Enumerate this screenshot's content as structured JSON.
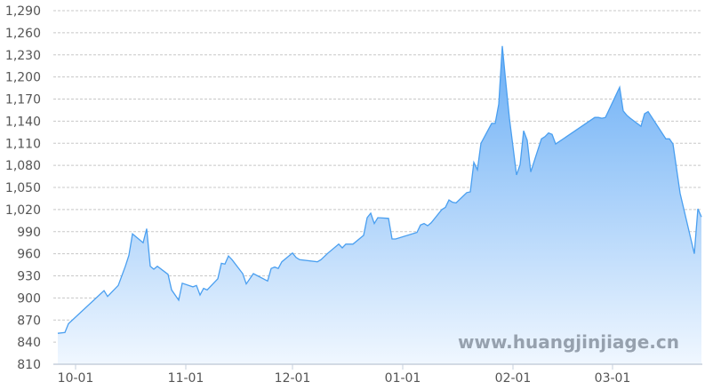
{
  "chart_data": {
    "type": "area",
    "title": "",
    "xlabel": "",
    "ylabel": "",
    "ylim": [
      810,
      1290
    ],
    "yticks": [
      "810",
      "840",
      "870",
      "900",
      "930",
      "960",
      "990",
      "1,020",
      "1,050",
      "1,080",
      "1,110",
      "1,140",
      "1,170",
      "1,200",
      "1,230",
      "1,260",
      "1,290"
    ],
    "xticks": [
      "10-01",
      "11-01",
      "12-01",
      "01-01",
      "02-01",
      "03-01"
    ],
    "grid": true,
    "legend": "none",
    "colors": {
      "line": "#4a9ff0",
      "fill_top": "#6aaef5",
      "fill_bottom": "#f0f7ff",
      "grid": "#c8c8c8",
      "axis": "#c5cfdc"
    },
    "watermark": "www.huangjinjiage.cn",
    "points": [
      [
        "09-26",
        852
      ],
      [
        "09-28",
        853
      ],
      [
        "09-29",
        865
      ],
      [
        "10-09",
        910
      ],
      [
        "10-10",
        902
      ],
      [
        "10-13",
        917
      ],
      [
        "10-15",
        943
      ],
      [
        "10-16",
        958
      ],
      [
        "10-17",
        987
      ],
      [
        "10-20",
        975
      ],
      [
        "10-21",
        994
      ],
      [
        "10-22",
        943
      ],
      [
        "10-23",
        939
      ],
      [
        "10-24",
        943
      ],
      [
        "10-27",
        932
      ],
      [
        "10-28",
        911
      ],
      [
        "10-30",
        897
      ],
      [
        "10-31",
        920
      ],
      [
        "11-03",
        915
      ],
      [
        "11-04",
        917
      ],
      [
        "11-05",
        904
      ],
      [
        "11-06",
        913
      ],
      [
        "11-07",
        911
      ],
      [
        "11-10",
        926
      ],
      [
        "11-11",
        947
      ],
      [
        "11-12",
        946
      ],
      [
        "11-13",
        957
      ],
      [
        "11-14",
        952
      ],
      [
        "11-17",
        933
      ],
      [
        "11-18",
        919
      ],
      [
        "11-20",
        933
      ],
      [
        "11-24",
        923
      ],
      [
        "11-25",
        940
      ],
      [
        "11-26",
        942
      ],
      [
        "11-27",
        940
      ],
      [
        "11-28",
        949
      ],
      [
        "12-01",
        961
      ],
      [
        "12-02",
        955
      ],
      [
        "12-03",
        952
      ],
      [
        "12-08",
        949
      ],
      [
        "12-09",
        952
      ],
      [
        "12-11",
        961
      ],
      [
        "12-14",
        973
      ],
      [
        "12-15",
        968
      ],
      [
        "12-16",
        973
      ],
      [
        "12-18",
        973
      ],
      [
        "12-21",
        985
      ],
      [
        "12-22",
        1009
      ],
      [
        "12-23",
        1015
      ],
      [
        "12-24",
        1001
      ],
      [
        "12-25",
        1009
      ],
      [
        "12-28",
        1008
      ],
      [
        "12-29",
        980
      ],
      [
        "12-30",
        980
      ],
      [
        "01-05",
        989
      ],
      [
        "01-06",
        999
      ],
      [
        "01-07",
        1001
      ],
      [
        "01-08",
        998
      ],
      [
        "01-09",
        1002
      ],
      [
        "01-12",
        1020
      ],
      [
        "01-13",
        1023
      ],
      [
        "01-14",
        1033
      ],
      [
        "01-15",
        1030
      ],
      [
        "01-16",
        1029
      ],
      [
        "01-19",
        1043
      ],
      [
        "01-20",
        1044
      ],
      [
        "01-21",
        1084
      ],
      [
        "01-22",
        1074
      ],
      [
        "01-23",
        1110
      ],
      [
        "01-26",
        1137
      ],
      [
        "01-27",
        1137
      ],
      [
        "01-28",
        1163
      ],
      [
        "01-29",
        1242
      ],
      [
        "01-30",
        1192
      ],
      [
        "01-31",
        1144
      ],
      [
        "02-02",
        1067
      ],
      [
        "02-03",
        1081
      ],
      [
        "02-04",
        1127
      ],
      [
        "02-05",
        1114
      ],
      [
        "02-06",
        1071
      ],
      [
        "02-09",
        1116
      ],
      [
        "02-10",
        1119
      ],
      [
        "02-11",
        1124
      ],
      [
        "02-12",
        1122
      ],
      [
        "02-13",
        1109
      ],
      [
        "02-24",
        1145
      ],
      [
        "02-25",
        1145
      ],
      [
        "02-26",
        1144
      ],
      [
        "02-27",
        1145
      ],
      [
        "03-03",
        1186
      ],
      [
        "03-04",
        1154
      ],
      [
        "03-05",
        1148
      ],
      [
        "03-06",
        1144
      ],
      [
        "03-09",
        1133
      ],
      [
        "03-10",
        1150
      ],
      [
        "03-11",
        1153
      ],
      [
        "03-16",
        1116
      ],
      [
        "03-17",
        1116
      ],
      [
        "03-18",
        1109
      ],
      [
        "03-20",
        1042
      ],
      [
        "03-24",
        960
      ],
      [
        "03-25",
        1021
      ],
      [
        "03-26",
        1010
      ]
    ]
  }
}
